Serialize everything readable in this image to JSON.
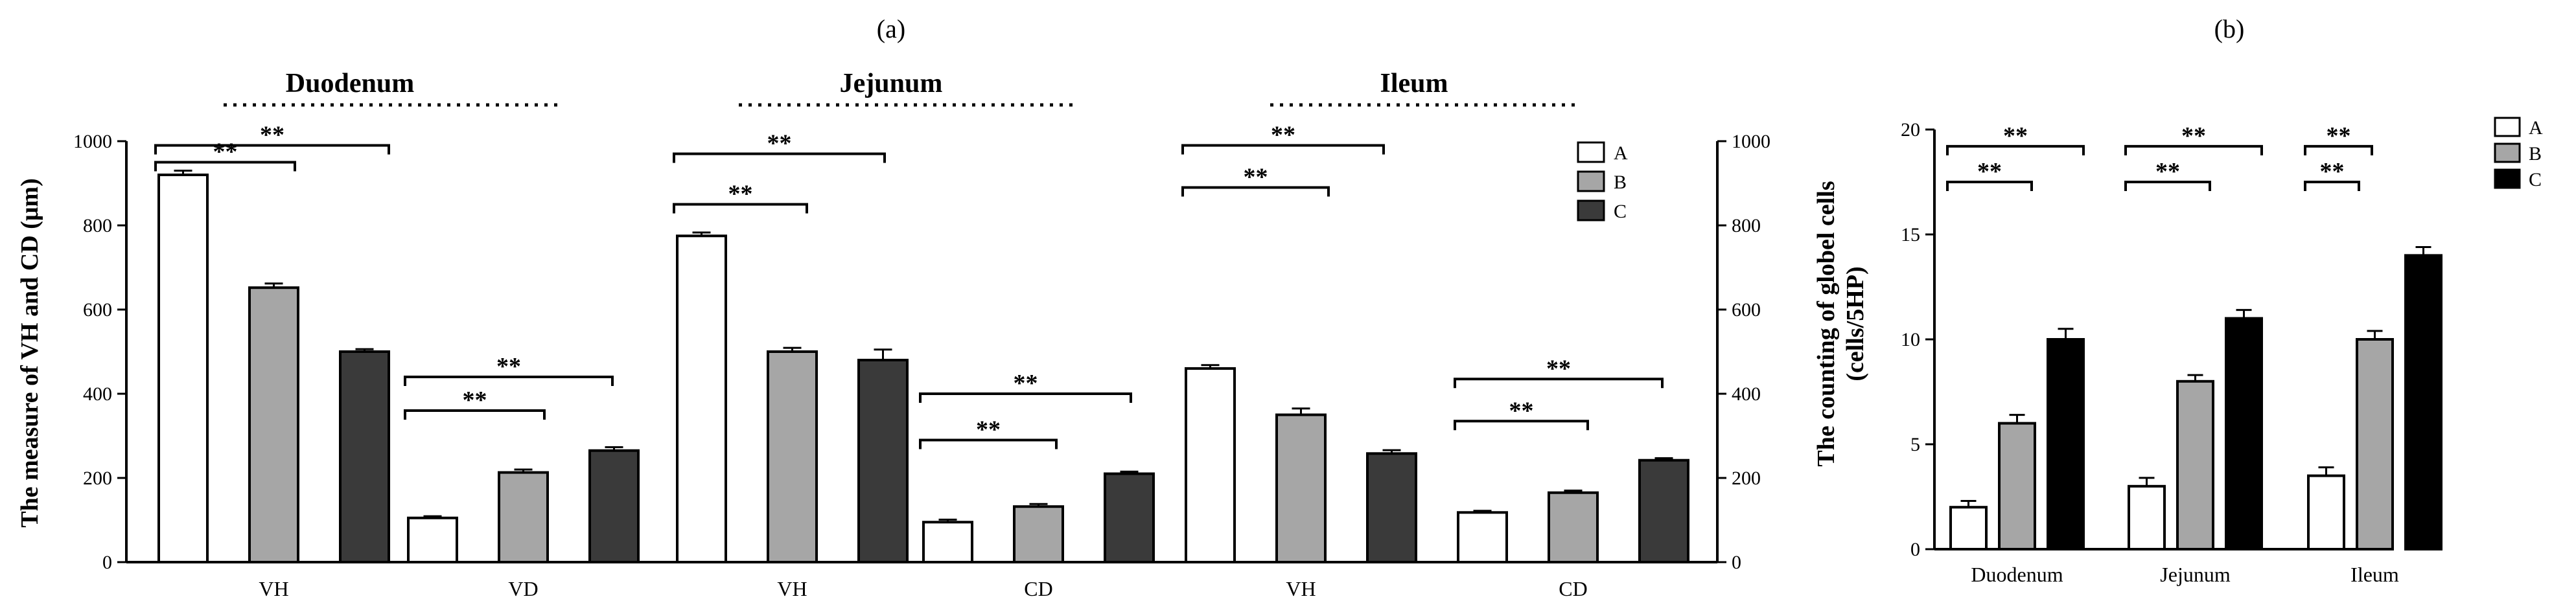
{
  "colors": {
    "A": "#ffffff",
    "B": "#a6a6a6",
    "C_a": "#3a3a3a",
    "C_b": "#000000",
    "axis": "#000000"
  },
  "chart_data": [
    {
      "panel": "(a)",
      "type": "bar",
      "ylabel": "The measure of VH and CD (μm)",
      "ylim": [
        0,
        1000
      ],
      "yticks": [
        "0",
        "200",
        "400",
        "600",
        "800",
        "1000"
      ],
      "right_yticks": [
        "0",
        "200",
        "400",
        "600",
        "800",
        "1000"
      ],
      "regions": [
        "Duodenum",
        "Jejunum",
        "Ileum"
      ],
      "legend": [
        "A",
        "B",
        "C"
      ],
      "categories": [
        "VH",
        "VD",
        "VH",
        "CD",
        "VH",
        "CD"
      ],
      "series": [
        {
          "name": "A",
          "values": [
            920,
            105,
            775,
            95,
            460,
            118
          ],
          "errors": [
            10,
            4,
            8,
            6,
            8,
            4
          ]
        },
        {
          "name": "B",
          "values": [
            652,
            213,
            500,
            132,
            350,
            165
          ],
          "errors": [
            10,
            7,
            9,
            6,
            15,
            5
          ]
        },
        {
          "name": "C",
          "values": [
            500,
            265,
            480,
            210,
            258,
            242
          ],
          "errors": [
            6,
            8,
            25,
            5,
            8,
            5
          ]
        }
      ],
      "significance": [
        "**",
        "**",
        "**",
        "**",
        "**",
        "**",
        "**",
        "**",
        "**",
        "**",
        "**",
        "**"
      ]
    },
    {
      "panel": "(b)",
      "type": "bar",
      "ylabel_line1": "The counting of globel cells",
      "ylabel_line2": "(cells/5HP)",
      "ylim": [
        0,
        20
      ],
      "yticks": [
        "0",
        "5",
        "10",
        "15",
        "20"
      ],
      "legend": [
        "A",
        "B",
        "C"
      ],
      "categories": [
        "Duodenum",
        "Jejunum",
        "Ileum"
      ],
      "series": [
        {
          "name": "A",
          "values": [
            2.0,
            3.0,
            3.5
          ],
          "errors": [
            0.3,
            0.4,
            0.4
          ]
        },
        {
          "name": "B",
          "values": [
            6.0,
            8.0,
            10.0
          ],
          "errors": [
            0.4,
            0.3,
            0.4
          ]
        },
        {
          "name": "C",
          "values": [
            10.0,
            11.0,
            14.0
          ],
          "errors": [
            0.5,
            0.4,
            0.4
          ]
        }
      ],
      "significance": [
        "**",
        "**",
        "**",
        "**",
        "**",
        "**"
      ]
    }
  ]
}
